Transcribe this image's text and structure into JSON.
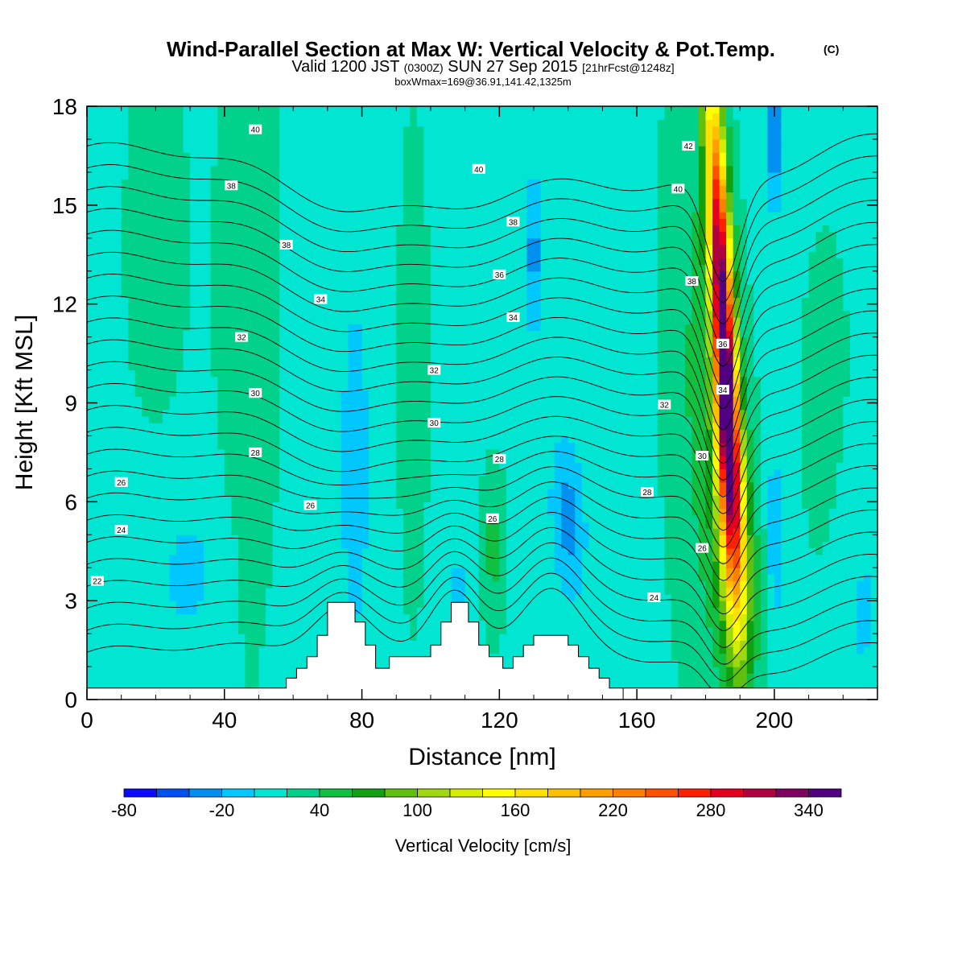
{
  "chart_data": {
    "type": "heatmap",
    "title": "Wind-Parallel Section at Max W: Vertical Velocity & Pot.Temp.",
    "title_mark": "(C)",
    "subtitle": {
      "prefix": "Valid 1200 JST",
      "utc": "(0300Z)",
      "date": "SUN 27 Sep 2015",
      "fcst": "[21hrFcst@1248z]"
    },
    "boxinfo": "boxWmax=169@36.91,141.42,1325m",
    "xlabel": "Distance [nm]",
    "ylabel": "Height [Kft MSL]",
    "xlim": [
      0,
      230
    ],
    "ylim": [
      0,
      18
    ],
    "x_ticks": [
      "0",
      "40",
      "80",
      "120",
      "160",
      "200"
    ],
    "y_ticks": [
      "0",
      "3",
      "6",
      "9",
      "12",
      "15",
      "18"
    ],
    "colorbar": {
      "label": "Vertical Velocity [cm/s]",
      "tick_labels": [
        "-80",
        "-20",
        "40",
        "100",
        "160",
        "220",
        "280",
        "340"
      ],
      "levels": [
        -80,
        -60,
        -40,
        -20,
        0,
        20,
        40,
        60,
        80,
        100,
        120,
        140,
        160,
        180,
        200,
        220,
        240,
        260,
        280,
        300,
        320,
        340,
        360
      ],
      "colors": [
        "#0a0aff",
        "#0050f0",
        "#0090f0",
        "#00c8ff",
        "#00e6d2",
        "#00d28c",
        "#10c040",
        "#10a010",
        "#60c010",
        "#a0d810",
        "#d8ec00",
        "#ffff00",
        "#ffe000",
        "#ffc000",
        "#ffa000",
        "#ff8000",
        "#ff5000",
        "#ff2000",
        "#e60020",
        "#b00040",
        "#800060",
        "#500080"
      ]
    },
    "field": {
      "background_value": 10,
      "features": [
        {
          "x": 185,
          "z": 11.5,
          "sx": 2.2,
          "sz": 5.0,
          "peak": 330,
          "slope": -0.45
        },
        {
          "x": 187,
          "z": 7.0,
          "sx": 3.2,
          "sz": 2.5,
          "peak": 100,
          "slope": -0.45
        },
        {
          "x": 189,
          "z": 3.5,
          "sx": 4.0,
          "sz": 2.5,
          "peak": 60,
          "slope": -0.4
        },
        {
          "x": 180,
          "z": 9.0,
          "sx": 9.0,
          "sz": 8.0,
          "peak": 35,
          "slope": -0.3
        },
        {
          "x": 140,
          "z": 5.5,
          "sx": 3.0,
          "sz": 1.5,
          "peak": -40,
          "slope": -0.4
        },
        {
          "x": 130,
          "z": 13.5,
          "sx": 1.5,
          "sz": 1.5,
          "peak": -40,
          "slope": 0
        },
        {
          "x": 200,
          "z": 17.0,
          "sx": 1.5,
          "sz": 1.5,
          "peak": -50,
          "slope": 0
        },
        {
          "x": 200,
          "z": 5.0,
          "sx": 1.5,
          "sz": 3.0,
          "peak": -25,
          "slope": 0
        },
        {
          "x": 118,
          "z": 4.5,
          "sx": 3.0,
          "sz": 2.0,
          "peak": 35,
          "slope": 0
        },
        {
          "x": 47,
          "z": 12.0,
          "sx": 7.0,
          "sz": 9.0,
          "peak": 25,
          "slope": 0
        },
        {
          "x": 20,
          "z": 14.0,
          "sx": 8.0,
          "sz": 5.0,
          "peak": 20,
          "slope": 0
        },
        {
          "x": 95,
          "z": 10.0,
          "sx": 4.0,
          "sz": 7.0,
          "peak": 20,
          "slope": 0
        },
        {
          "x": 215,
          "z": 9.0,
          "sx": 8.0,
          "sz": 6.0,
          "peak": 15,
          "slope": 0
        },
        {
          "x": 30,
          "z": 4.0,
          "sx": 10.0,
          "sz": 2.0,
          "peak": -15,
          "slope": 0
        },
        {
          "x": 78,
          "z": 7.0,
          "sx": 4.0,
          "sz": 5.0,
          "peak": -15,
          "slope": 0
        },
        {
          "x": 108,
          "z": 3.0,
          "sx": 4.0,
          "sz": 2.0,
          "peak": -12,
          "slope": 0
        },
        {
          "x": 225,
          "z": 3.0,
          "sx": 5.0,
          "sz": 3.0,
          "peak": -15,
          "slope": 0
        }
      ]
    },
    "terrain": [
      [
        55,
        0.35
      ],
      [
        58,
        0.35
      ],
      [
        58,
        0.65
      ],
      [
        61,
        0.65
      ],
      [
        61,
        0.95
      ],
      [
        64,
        0.95
      ],
      [
        64,
        1.3
      ],
      [
        67,
        1.3
      ],
      [
        67,
        1.95
      ],
      [
        70,
        1.95
      ],
      [
        70,
        2.95
      ],
      [
        78,
        2.95
      ],
      [
        78,
        2.35
      ],
      [
        81,
        2.35
      ],
      [
        81,
        1.65
      ],
      [
        84,
        1.65
      ],
      [
        84,
        0.95
      ],
      [
        88,
        0.95
      ],
      [
        88,
        1.3
      ],
      [
        100,
        1.3
      ],
      [
        100,
        1.65
      ],
      [
        103,
        1.65
      ],
      [
        103,
        2.35
      ],
      [
        106,
        2.35
      ],
      [
        106,
        2.95
      ],
      [
        111,
        2.95
      ],
      [
        111,
        2.35
      ],
      [
        114,
        2.35
      ],
      [
        114,
        1.65
      ],
      [
        117,
        1.65
      ],
      [
        117,
        1.3
      ],
      [
        121,
        1.3
      ],
      [
        121,
        0.95
      ],
      [
        124,
        0.95
      ],
      [
        124,
        1.3
      ],
      [
        127,
        1.3
      ],
      [
        127,
        1.65
      ],
      [
        130,
        1.65
      ],
      [
        130,
        1.95
      ],
      [
        140,
        1.95
      ],
      [
        140,
        1.65
      ],
      [
        143,
        1.65
      ],
      [
        143,
        1.3
      ],
      [
        146,
        1.3
      ],
      [
        146,
        0.95
      ],
      [
        149,
        0.95
      ],
      [
        149,
        0.65
      ],
      [
        152,
        0.65
      ],
      [
        152,
        0.35
      ],
      [
        156,
        0.35
      ],
      [
        156,
        0.0
      ]
    ],
    "contour_levels": [
      20,
      21,
      22,
      23,
      24,
      25,
      26,
      27,
      28,
      29,
      30,
      31,
      32,
      33,
      34,
      35,
      36,
      37,
      38,
      39,
      40,
      41,
      42,
      43
    ],
    "contour_labels": [
      {
        "text": "40",
        "x": 49,
        "z": 17.3
      },
      {
        "text": "38",
        "x": 42,
        "z": 15.6
      },
      {
        "text": "38",
        "x": 58,
        "z": 13.8
      },
      {
        "text": "34",
        "x": 68,
        "z": 12.15
      },
      {
        "text": "32",
        "x": 45,
        "z": 11.0
      },
      {
        "text": "30",
        "x": 49,
        "z": 9.3
      },
      {
        "text": "28",
        "x": 49,
        "z": 7.5
      },
      {
        "text": "26",
        "x": 10,
        "z": 6.6
      },
      {
        "text": "24",
        "x": 10,
        "z": 5.15
      },
      {
        "text": "22",
        "x": 3,
        "z": 3.6
      },
      {
        "text": "26",
        "x": 65,
        "z": 5.9
      },
      {
        "text": "40",
        "x": 114,
        "z": 16.1
      },
      {
        "text": "38",
        "x": 124,
        "z": 14.5
      },
      {
        "text": "36",
        "x": 120,
        "z": 12.9
      },
      {
        "text": "34",
        "x": 124,
        "z": 11.6
      },
      {
        "text": "32",
        "x": 101,
        "z": 10.0
      },
      {
        "text": "30",
        "x": 101,
        "z": 8.4
      },
      {
        "text": "28",
        "x": 120,
        "z": 7.3
      },
      {
        "text": "26",
        "x": 118,
        "z": 5.5
      },
      {
        "text": "42",
        "x": 175,
        "z": 16.8
      },
      {
        "text": "40",
        "x": 172,
        "z": 15.5
      },
      {
        "text": "38",
        "x": 176,
        "z": 12.7
      },
      {
        "text": "36",
        "x": 185,
        "z": 10.8
      },
      {
        "text": "34",
        "x": 185,
        "z": 9.4
      },
      {
        "text": "32",
        "x": 168,
        "z": 8.95
      },
      {
        "text": "30",
        "x": 179,
        "z": 7.4
      },
      {
        "text": "28",
        "x": 163,
        "z": 6.3
      },
      {
        "text": "26",
        "x": 179,
        "z": 4.6
      },
      {
        "text": "24",
        "x": 165,
        "z": 3.1
      }
    ]
  }
}
